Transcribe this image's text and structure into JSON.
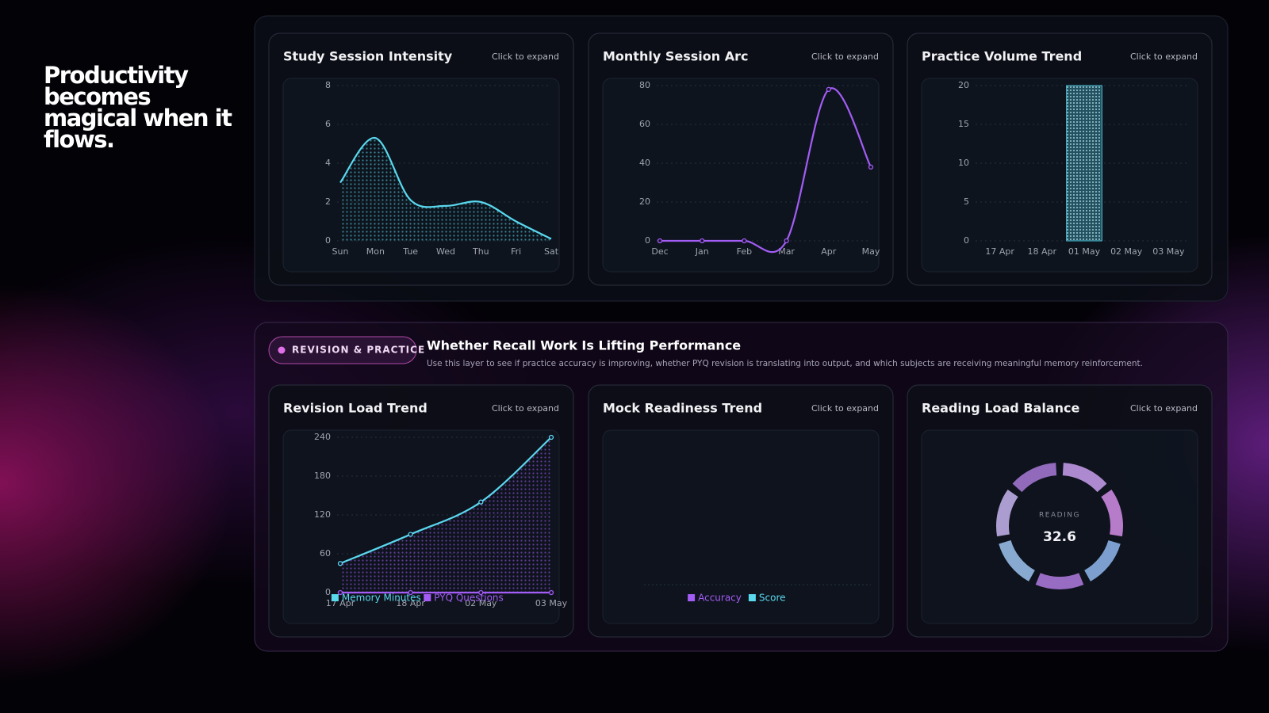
{
  "headline": "Productivity becomes magical when it flows.",
  "section": {
    "badge": "REVISION & PRACTICE",
    "title": "Whether Recall Work Is Lifting Performance",
    "description": "Use this layer to see if practice accuracy is improving, whether PYQ revision is translating into output, and which subjects are receiving meaningful memory reinforcement."
  },
  "chart_data": [
    {
      "type": "area",
      "title": "Study Session Intensity",
      "expand": "Click to expand",
      "categories": [
        "Sun",
        "Mon",
        "Tue",
        "Wed",
        "Thu",
        "Fri",
        "Sat"
      ],
      "values": [
        3,
        5.3,
        2.1,
        1.8,
        2,
        1,
        0.1
      ],
      "color": "#5ad8ee",
      "ylim": [
        0,
        8
      ],
      "yticks": [
        0,
        2,
        4,
        6,
        8
      ]
    },
    {
      "type": "line",
      "title": "Monthly Session Arc",
      "expand": "Click to expand",
      "categories": [
        "Dec",
        "Jan",
        "Feb",
        "Mar",
        "Apr",
        "May"
      ],
      "values": [
        0,
        0,
        0,
        0,
        78,
        38
      ],
      "color": "#a35cf5",
      "ylim": [
        0,
        80
      ],
      "yticks": [
        0,
        20,
        40,
        60,
        80
      ]
    },
    {
      "type": "bar",
      "title": "Practice Volume Trend",
      "expand": "Click to expand",
      "categories": [
        "17 Apr",
        "18 Apr",
        "01 May",
        "02 May",
        "03 May"
      ],
      "values": [
        0,
        0,
        20,
        0,
        0
      ],
      "color": "#4fc3d9",
      "ylim": [
        0,
        20
      ],
      "yticks": [
        0,
        5,
        10,
        15,
        20
      ]
    },
    {
      "type": "area",
      "title": "Revision Load Trend",
      "expand": "Click to expand",
      "categories": [
        "17 Apr",
        "18 Apr",
        "02 May",
        "03 May"
      ],
      "series": [
        {
          "name": "Memory Minutes",
          "color": "#5ad8ee",
          "values": [
            45,
            90,
            140,
            240
          ]
        },
        {
          "name": "PYQ Questions",
          "color": "#a35cf5",
          "values": [
            0,
            0,
            0,
            0
          ]
        }
      ],
      "ylim": [
        0,
        240
      ],
      "yticks": [
        0,
        60,
        120,
        180,
        240
      ]
    },
    {
      "type": "line",
      "title": "Mock Readiness Trend",
      "expand": "Click to expand",
      "categories": [],
      "series": [
        {
          "name": "Accuracy",
          "color": "#a35cf5",
          "values": []
        },
        {
          "name": "Score",
          "color": "#5ad8ee",
          "values": []
        }
      ]
    },
    {
      "type": "donut",
      "title": "Reading Load Balance",
      "expand": "Click to expand",
      "label": "READING",
      "value": 32.6
    }
  ]
}
